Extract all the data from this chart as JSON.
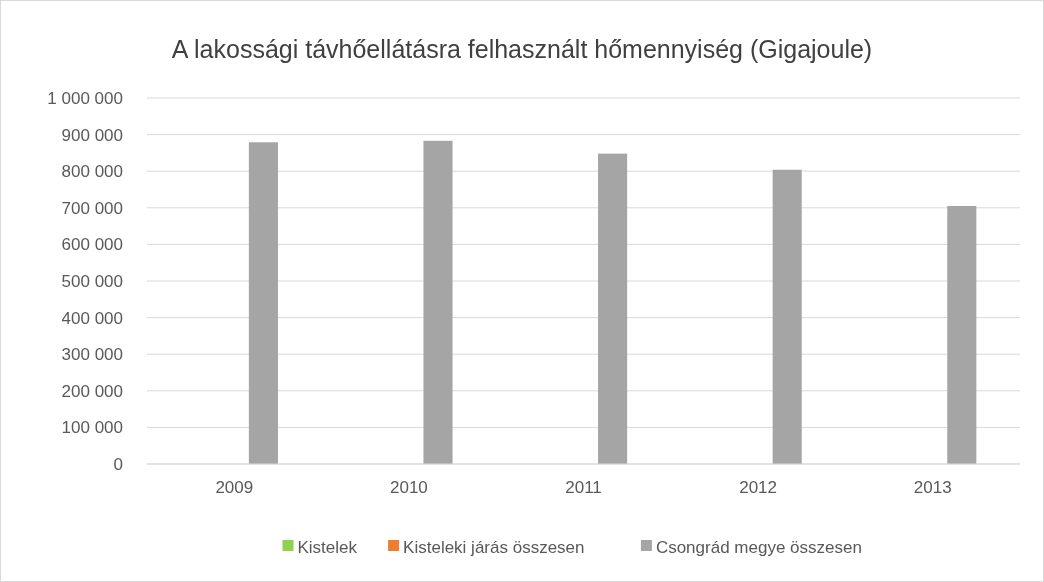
{
  "chart_data": {
    "type": "bar",
    "title": "A lakossági távhőellátásra felhasznált hőmennyiség (Gigajoule)",
    "categories": [
      "2009",
      "2010",
      "2011",
      "2012",
      "2013"
    ],
    "series": [
      {
        "name": "Kistelek",
        "color": "#92d050",
        "values": [
          0,
          0,
          0,
          0,
          0
        ]
      },
      {
        "name": "Kisteleki járás összesen",
        "color": "#ed7d31",
        "values": [
          0,
          0,
          0,
          0,
          0
        ]
      },
      {
        "name": "Csongrád megye összesen",
        "color": "#a5a5a5",
        "values": [
          879000,
          883000,
          848000,
          804000,
          705000
        ]
      }
    ],
    "ylim": [
      0,
      1000000
    ],
    "yticks": [
      {
        "value": 0,
        "label": "0"
      },
      {
        "value": 100000,
        "label": "100 000"
      },
      {
        "value": 200000,
        "label": "200 000"
      },
      {
        "value": 300000,
        "label": "300 000"
      },
      {
        "value": 400000,
        "label": "400 000"
      },
      {
        "value": 500000,
        "label": "500 000"
      },
      {
        "value": 600000,
        "label": "600 000"
      },
      {
        "value": 700000,
        "label": "700 000"
      },
      {
        "value": 800000,
        "label": "800 000"
      },
      {
        "value": 900000,
        "label": "900 000"
      },
      {
        "value": 1000000,
        "label": "1 000 000"
      }
    ],
    "grid": "y",
    "legend": "bottom"
  }
}
